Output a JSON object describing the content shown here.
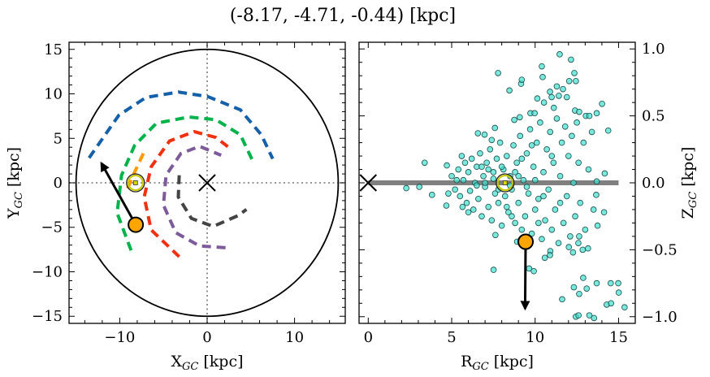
{
  "title": "(-8.17, -4.71, -0.44) [kpc]",
  "chart_data": [
    {
      "type": "line",
      "panel": "left",
      "xlabel_main": "X",
      "xlabel_sub": "GC",
      "xlabel_unit": " [kpc]",
      "ylabel_main": "Y",
      "ylabel_sub": "GC",
      "ylabel_unit": " [kpc]",
      "xlim": [
        -15.8,
        15.8
      ],
      "ylim": [
        -15.8,
        15.8
      ],
      "xticks": [
        -10,
        0,
        10
      ],
      "xtick_labels": [
        "−10",
        "0",
        "10"
      ],
      "yticks": [
        -15,
        -10,
        -5,
        0,
        5,
        10,
        15
      ],
      "ytick_labels": [
        "−15",
        "−10",
        "−5",
        "0",
        "5",
        "10",
        "15"
      ],
      "x_minor_step": 2,
      "y_minor_step": 1,
      "grid": false,
      "reference_lines": {
        "x": 0,
        "y": 0,
        "style": "dotted",
        "color": "#777777"
      },
      "boundary_circle": {
        "center": [
          0,
          0
        ],
        "radius": 15,
        "color": "#000000"
      },
      "galactic_center_marker": {
        "x": 0,
        "y": 0,
        "symbol": "x"
      },
      "sun": {
        "x": -8.2,
        "y": 0.0
      },
      "object": {
        "x": -8.17,
        "y": -4.71,
        "color": "#ffa500"
      },
      "velocity_arrow": {
        "from": [
          -8.17,
          -4.71
        ],
        "to": [
          -12.1,
          2.2
        ]
      },
      "series": [
        {
          "color": "#1560a8",
          "style": "dashed",
          "points": [
            [
              -13.5,
              2.8
            ],
            [
              -10.1,
              7.6
            ],
            [
              -7.0,
              9.6
            ],
            [
              -3.3,
              10.2
            ],
            [
              0.06,
              9.7
            ],
            [
              3.8,
              8.2
            ],
            [
              6.2,
              5.4
            ],
            [
              7.5,
              2.7
            ]
          ]
        },
        {
          "color": "#00b34a",
          "style": "dashed",
          "points": [
            [
              -8.7,
              -7.6
            ],
            [
              -10.3,
              -3.4
            ],
            [
              -9.8,
              0.85
            ],
            [
              -8.3,
              4.2
            ],
            [
              -5.8,
              6.7
            ],
            [
              -2.1,
              7.4
            ],
            [
              1.0,
              7.1
            ],
            [
              3.8,
              5.4
            ],
            [
              5.2,
              2.5
            ]
          ]
        },
        {
          "color": "#f03010",
          "style": "dashed",
          "points": [
            [
              -3.2,
              -8.3
            ],
            [
              -6.4,
              -5.3
            ],
            [
              -7.2,
              -1.6
            ],
            [
              -6.4,
              1.8
            ],
            [
              -4.3,
              4.7
            ],
            [
              -1.5,
              5.75
            ],
            [
              1.0,
              5.1
            ],
            [
              2.7,
              3.8
            ]
          ]
        },
        {
          "color": "#7d5a9a",
          "style": "dashed",
          "points": [
            [
              2.1,
              -7.3
            ],
            [
              -0.86,
              -7.1
            ],
            [
              -3.6,
              -5.6
            ],
            [
              -5.0,
              -2.5
            ],
            [
              -4.7,
              0.85
            ],
            [
              -3.0,
              3.3
            ],
            [
              -0.86,
              4.1
            ],
            [
              1.6,
              3.1
            ]
          ]
        },
        {
          "color": "#444444",
          "style": "dashed",
          "points": [
            [
              -3.2,
              0.85
            ],
            [
              -3.3,
              -1.6
            ],
            [
              -1.8,
              -4.0
            ],
            [
              0.7,
              -4.9
            ],
            [
              3.5,
              -3.7
            ],
            [
              4.5,
              -3.0
            ]
          ]
        },
        {
          "color": "#ff9a00",
          "style": "dashed",
          "points": [
            [
              -7.3,
              3.3
            ],
            [
              -8.3,
              1.2
            ],
            [
              -9.3,
              -1.1
            ]
          ]
        }
      ]
    },
    {
      "type": "scatter",
      "panel": "right",
      "xlabel_main": "R",
      "xlabel_sub": "GC",
      "xlabel_unit": " [kpc]",
      "ylabel_main": "Z",
      "ylabel_sub": "GC",
      "ylabel_unit": " [kpc]",
      "ylabel_position": "right",
      "xlim": [
        -0.55,
        16.0
      ],
      "ylim": [
        -1.05,
        1.05
      ],
      "xticks": [
        0,
        5,
        10,
        15
      ],
      "xtick_labels": [
        "0",
        "5",
        "10",
        "15"
      ],
      "yticks": [
        -1.0,
        -0.5,
        0.0,
        0.5,
        1.0
      ],
      "ytick_labels": [
        "−1.0",
        "−0.5",
        "0.0",
        "0.5",
        "1.0"
      ],
      "x_minor_step": 1,
      "y_minor_step": 0.1,
      "grid": false,
      "marker_color": "#40e0d0",
      "marker_edge": "#1a4a48",
      "disk_line": {
        "from": 0,
        "to": 15,
        "z": 0,
        "color": "#808080"
      },
      "galactic_center_marker": {
        "x": 0,
        "y": 0,
        "symbol": "x"
      },
      "sun": {
        "x": 8.2,
        "y": 0.0
      },
      "object": {
        "x": 9.43,
        "y": -0.44,
        "color": "#ffa500"
      },
      "velocity_arrow": {
        "from": [
          9.43,
          -0.44
        ],
        "to": [
          9.4,
          -0.94
        ]
      },
      "points": [
        [
          11.47,
          0.96
        ],
        [
          12.15,
          0.92
        ],
        [
          10.4,
          0.87
        ],
        [
          7.78,
          0.82
        ],
        [
          10.45,
          0.79
        ],
        [
          12.35,
          0.82
        ],
        [
          12.44,
          0.76
        ],
        [
          12.04,
          0.76
        ],
        [
          9.16,
          0.74
        ],
        [
          9.2,
          0.77
        ],
        [
          8.46,
          0.69
        ],
        [
          11.3,
          0.72
        ],
        [
          11.67,
          0.7
        ],
        [
          11.42,
          0.65
        ],
        [
          11.9,
          0.64
        ],
        [
          10.89,
          0.68
        ],
        [
          10.99,
          0.64
        ],
        [
          10.13,
          0.63
        ],
        [
          10.53,
          0.6
        ],
        [
          14.01,
          0.59
        ],
        [
          11.12,
          0.56
        ],
        [
          9.08,
          0.49
        ],
        [
          9.72,
          0.52
        ],
        [
          9.97,
          0.52
        ],
        [
          8.75,
          0.47
        ],
        [
          12.39,
          0.54
        ],
        [
          12.64,
          0.53
        ],
        [
          13.04,
          0.5
        ],
        [
          13.25,
          0.5
        ],
        [
          13.69,
          0.52
        ],
        [
          14.38,
          0.39
        ],
        [
          6.57,
          0.37
        ],
        [
          7.59,
          0.41
        ],
        [
          6.97,
          0.36
        ],
        [
          3.38,
          0.15
        ],
        [
          2.28,
          -0.04
        ],
        [
          3.06,
          -0.03
        ],
        [
          3.82,
          -0.09
        ],
        [
          4.71,
          0.13
        ],
        [
          4.68,
          -0.17
        ],
        [
          5.65,
          -0.18
        ],
        [
          14.17,
          0.07
        ],
        [
          13.69,
          0.01
        ],
        [
          13.66,
          -0.09
        ],
        [
          14.13,
          -0.22
        ],
        [
          13.74,
          -0.32
        ],
        [
          7.62,
          -0.39
        ],
        [
          8.92,
          -0.44
        ],
        [
          7.51,
          -0.65
        ],
        [
          9.64,
          -0.64
        ],
        [
          9.92,
          -0.66
        ],
        [
          10.58,
          -0.56
        ],
        [
          10.91,
          -0.51
        ],
        [
          10.89,
          -0.54
        ],
        [
          12.02,
          -0.48
        ],
        [
          12.27,
          -0.52
        ],
        [
          12.85,
          -0.5
        ],
        [
          13.17,
          -0.49
        ],
        [
          12.59,
          -0.45
        ],
        [
          12.64,
          -0.4
        ],
        [
          12.88,
          -0.71
        ],
        [
          12.32,
          -0.78
        ],
        [
          12.64,
          -0.83
        ],
        [
          13.09,
          -0.79
        ],
        [
          13.69,
          -0.75
        ],
        [
          14.53,
          -0.75
        ],
        [
          14.98,
          -0.75
        ],
        [
          15.01,
          -0.82
        ],
        [
          11.62,
          -0.87
        ],
        [
          14.29,
          -0.91
        ],
        [
          14.55,
          -0.9
        ],
        [
          15.36,
          -0.93
        ],
        [
          12.44,
          -1.0
        ],
        [
          12.6,
          -0.99
        ],
        [
          13.25,
          -0.99
        ],
        [
          13.53,
          -1.01
        ],
        [
          5.0,
          0.05
        ],
        [
          5.2,
          -0.05
        ],
        [
          5.4,
          0.1
        ],
        [
          5.5,
          -0.1
        ],
        [
          5.7,
          0.02
        ],
        [
          5.8,
          0.15
        ],
        [
          5.9,
          -0.15
        ],
        [
          6.0,
          0.08
        ],
        [
          6.1,
          -0.06
        ],
        [
          6.2,
          0.18
        ],
        [
          6.3,
          -0.2
        ],
        [
          6.4,
          0.0
        ],
        [
          6.5,
          0.12
        ],
        [
          6.6,
          -0.12
        ],
        [
          6.7,
          0.22
        ],
        [
          6.8,
          -0.25
        ],
        [
          6.9,
          0.05
        ],
        [
          7.0,
          -0.03
        ],
        [
          7.1,
          0.15
        ],
        [
          7.2,
          -0.18
        ],
        [
          7.3,
          0.25
        ],
        [
          7.4,
          -0.28
        ],
        [
          7.5,
          0.08
        ],
        [
          7.6,
          -0.08
        ],
        [
          7.7,
          0.18
        ],
        [
          7.8,
          -0.15
        ],
        [
          7.9,
          0.3
        ],
        [
          8.0,
          -0.32
        ],
        [
          8.1,
          0.1
        ],
        [
          8.2,
          -0.1
        ],
        [
          8.3,
          0.2
        ],
        [
          8.4,
          -0.22
        ],
        [
          8.5,
          0.05
        ],
        [
          8.6,
          -0.05
        ],
        [
          8.7,
          0.28
        ],
        [
          8.8,
          -0.3
        ],
        [
          8.9,
          0.15
        ],
        [
          9.0,
          -0.15
        ],
        [
          9.1,
          0.35
        ],
        [
          9.2,
          -0.35
        ],
        [
          9.3,
          0.02
        ],
        [
          9.4,
          -0.25
        ],
        [
          9.5,
          0.22
        ],
        [
          9.6,
          -0.08
        ],
        [
          9.7,
          0.4
        ],
        [
          9.8,
          -0.38
        ],
        [
          9.9,
          0.12
        ],
        [
          10.0,
          -0.2
        ],
        [
          10.1,
          0.3
        ],
        [
          10.2,
          -0.12
        ],
        [
          10.3,
          0.45
        ],
        [
          10.4,
          -0.42
        ],
        [
          10.5,
          0.08
        ],
        [
          10.6,
          -0.28
        ],
        [
          10.7,
          0.25
        ],
        [
          10.8,
          -0.05
        ],
        [
          10.9,
          0.38
        ],
        [
          11.0,
          -0.35
        ],
        [
          11.1,
          0.15
        ],
        [
          11.2,
          -0.2
        ],
        [
          11.3,
          0.48
        ],
        [
          11.4,
          -0.45
        ],
        [
          11.5,
          0.05
        ],
        [
          11.6,
          0.3
        ],
        [
          11.7,
          -0.3
        ],
        [
          11.8,
          0.42
        ],
        [
          11.9,
          -0.1
        ],
        [
          12.0,
          0.2
        ],
        [
          12.1,
          -0.4
        ],
        [
          12.2,
          0.35
        ],
        [
          12.3,
          0.0
        ],
        [
          12.4,
          -0.25
        ],
        [
          12.5,
          0.45
        ],
        [
          12.6,
          0.15
        ],
        [
          12.7,
          -0.15
        ],
        [
          12.9,
          0.3
        ],
        [
          13.0,
          -0.35
        ],
        [
          13.2,
          0.1
        ],
        [
          13.4,
          0.38
        ],
        [
          13.5,
          -0.2
        ],
        [
          7.0,
          0.0
        ],
        [
          7.5,
          0.03
        ],
        [
          8.5,
          -0.02
        ],
        [
          9.0,
          0.05
        ],
        [
          8.0,
          0.12
        ],
        [
          8.8,
          0.08
        ],
        [
          7.8,
          -0.05
        ],
        [
          9.5,
          -0.03
        ],
        [
          6.5,
          -0.02
        ],
        [
          10.0,
          0.02
        ],
        [
          7.2,
          0.1
        ],
        [
          8.3,
          -0.18
        ],
        [
          9.2,
          0.18
        ],
        [
          6.8,
          0.12
        ],
        [
          10.5,
          -0.1
        ],
        [
          5.6,
          0.2
        ],
        [
          6.0,
          -0.22
        ],
        [
          7.4,
          0.32
        ],
        [
          8.6,
          -0.25
        ],
        [
          9.8,
          0.28
        ],
        [
          10.2,
          -0.3
        ],
        [
          11.0,
          0.2
        ],
        [
          11.5,
          -0.15
        ],
        [
          4.8,
          -0.08
        ],
        [
          5.3,
          0.02
        ]
      ]
    }
  ]
}
